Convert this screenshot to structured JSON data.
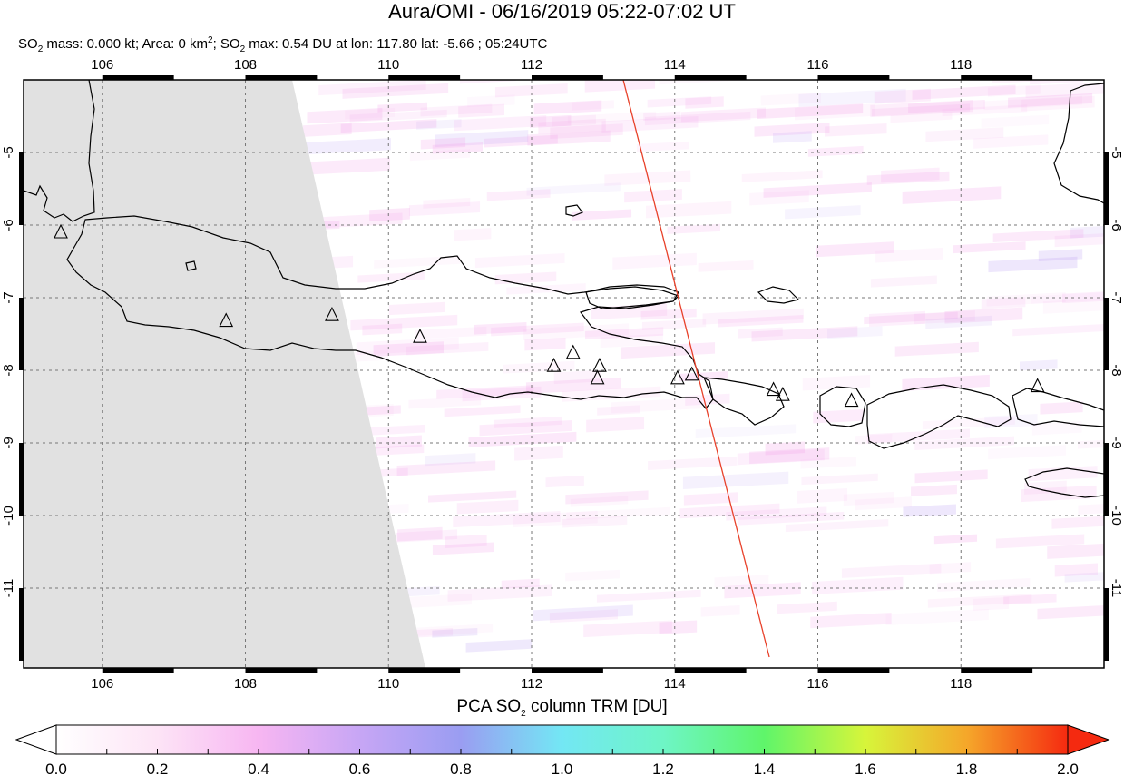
{
  "title": "Aura/OMI - 06/16/2019 05:22-07:02 UT",
  "subtitle": {
    "p1": "SO",
    "s1": "2",
    "p2": " mass: 0.000 kt; Area: 0 km",
    "s2": "2",
    "p3": "; SO",
    "s3": "2",
    "p4": " max: 0.54 DU at lon: 117.80 lat: -5.66 ; 05:24UTC"
  },
  "map": {
    "lon_range": [
      104.9,
      120.0
    ],
    "lat_range": [
      -12.1,
      -4.0
    ],
    "lon_ticks": [
      "106",
      "108",
      "110",
      "112",
      "114",
      "116",
      "118"
    ],
    "lat_ticks": [
      "-5",
      "-6",
      "-7",
      "-8",
      "-9",
      "-10",
      "-11"
    ],
    "gridlines": true,
    "no_data_color": "#e1e1e1",
    "orbit_track_color": "#e8412a",
    "volcanoes": [
      [
        105.42,
        -6.1
      ],
      [
        107.73,
        -7.32
      ],
      [
        109.21,
        -7.24
      ],
      [
        110.44,
        -7.54
      ],
      [
        112.31,
        -7.94
      ],
      [
        112.58,
        -7.76
      ],
      [
        112.95,
        -7.94
      ],
      [
        112.92,
        -8.11
      ],
      [
        114.04,
        -8.11
      ],
      [
        114.24,
        -8.06
      ],
      [
        115.38,
        -8.27
      ],
      [
        115.51,
        -8.34
      ],
      [
        116.47,
        -8.42
      ],
      [
        119.07,
        -8.22
      ]
    ]
  },
  "colorbar": {
    "title_pre": "PCA SO",
    "title_sub": "2",
    "title_post": " column TRM [DU]",
    "range": [
      0.0,
      2.0
    ],
    "tick_labels": [
      "0.0",
      "0.2",
      "0.4",
      "0.6",
      "0.8",
      "1.0",
      "1.2",
      "1.4",
      "1.6",
      "1.8",
      "2.0"
    ]
  }
}
